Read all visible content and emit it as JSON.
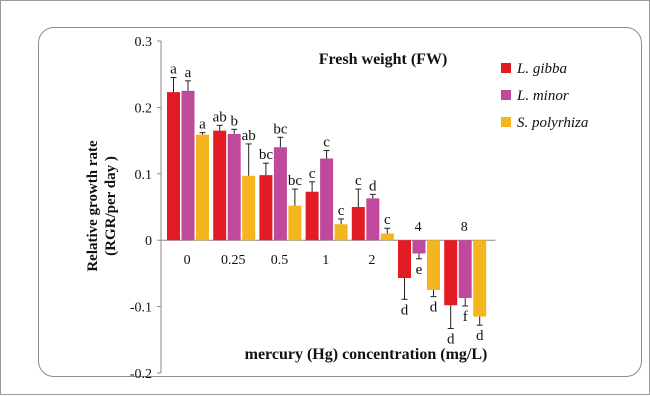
{
  "chart_data": {
    "type": "bar",
    "title": "Fresh weight (FW)",
    "xlabel": "mercury (Hg) concentration (mg/L)",
    "ylabel": "Relative growth rate (RGR/per day )",
    "ylabel_lines": [
      "Relative growth rate",
      "(RGR/per day )"
    ],
    "categories": [
      "0",
      "0.25",
      "0.5",
      "1",
      "2",
      "4",
      "8"
    ],
    "ylim": [
      -0.2,
      0.3
    ],
    "yticks": [
      "0.3",
      "0.2",
      "0.1",
      "0",
      "-0.1",
      "-0.2"
    ],
    "grid": false,
    "legend_position": "top-right",
    "series": [
      {
        "name": "L. gibba",
        "color": "#e31c23",
        "values": [
          0.223,
          0.165,
          0.098,
          0.073,
          0.05,
          -0.057,
          -0.098
        ],
        "errors": [
          0.022,
          0.008,
          0.018,
          0.015,
          0.027,
          0.032,
          0.035
        ],
        "letters": [
          "a",
          "ab",
          "bc",
          "c",
          "c",
          "d",
          "d"
        ]
      },
      {
        "name": "L. minor",
        "color": "#c1499b",
        "values": [
          0.225,
          0.16,
          0.14,
          0.123,
          0.063,
          -0.02,
          -0.087
        ],
        "errors": [
          0.015,
          0.007,
          0.015,
          0.012,
          0.006,
          0.008,
          0.012
        ],
        "letters": [
          "a",
          "b",
          "bc",
          "c",
          "d",
          "e",
          "f"
        ]
      },
      {
        "name": "S. polyrhiza",
        "color": "#f5b51e",
        "values": [
          0.159,
          0.097,
          0.052,
          0.024,
          0.01,
          -0.075,
          -0.115
        ],
        "errors": [
          0.003,
          0.048,
          0.025,
          0.008,
          0.008,
          0.01,
          0.013
        ],
        "letters": [
          "a",
          "ab",
          "bc",
          "c",
          "c",
          "d",
          "d"
        ]
      }
    ]
  }
}
